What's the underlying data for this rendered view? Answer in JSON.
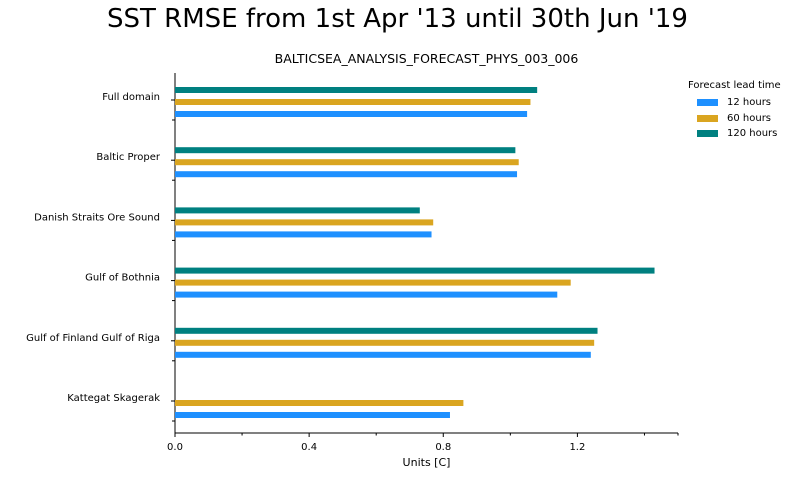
{
  "chart_data": {
    "type": "bar",
    "orientation": "horizontal",
    "suptitle": "SST RMSE from 1st Apr '13 until 30th Jun '19",
    "title": "BALTICSEA_ANALYSIS_FORECAST_PHYS_003_006",
    "xlabel": "Units [C]",
    "ylabel": "",
    "xlim": [
      0,
      1.5
    ],
    "xticks": [
      "0.0",
      "0.4",
      "0.8",
      "1.2"
    ],
    "xtick_values": [
      0.0,
      0.4,
      0.8,
      1.2
    ],
    "categories": [
      "Full domain",
      "Baltic Proper",
      "Danish Straits Ore Sound",
      "Gulf of Bothnia",
      "Gulf of Finland Gulf of Riga",
      "Kattegat Skagerak"
    ],
    "legend_title": "Forecast lead time",
    "legend_position": "top-right",
    "grid": false,
    "series": [
      {
        "name": "12 hours",
        "color": "#1e90ff",
        "values": [
          1.05,
          1.02,
          0.765,
          1.14,
          1.24,
          0.82
        ]
      },
      {
        "name": "60 hours",
        "color": "#daa520",
        "values": [
          1.06,
          1.025,
          0.77,
          1.18,
          1.25,
          0.86
        ]
      },
      {
        "name": "120 hours",
        "color": "#008080",
        "values": [
          1.08,
          1.015,
          0.73,
          1.43,
          1.26,
          null
        ]
      }
    ]
  }
}
